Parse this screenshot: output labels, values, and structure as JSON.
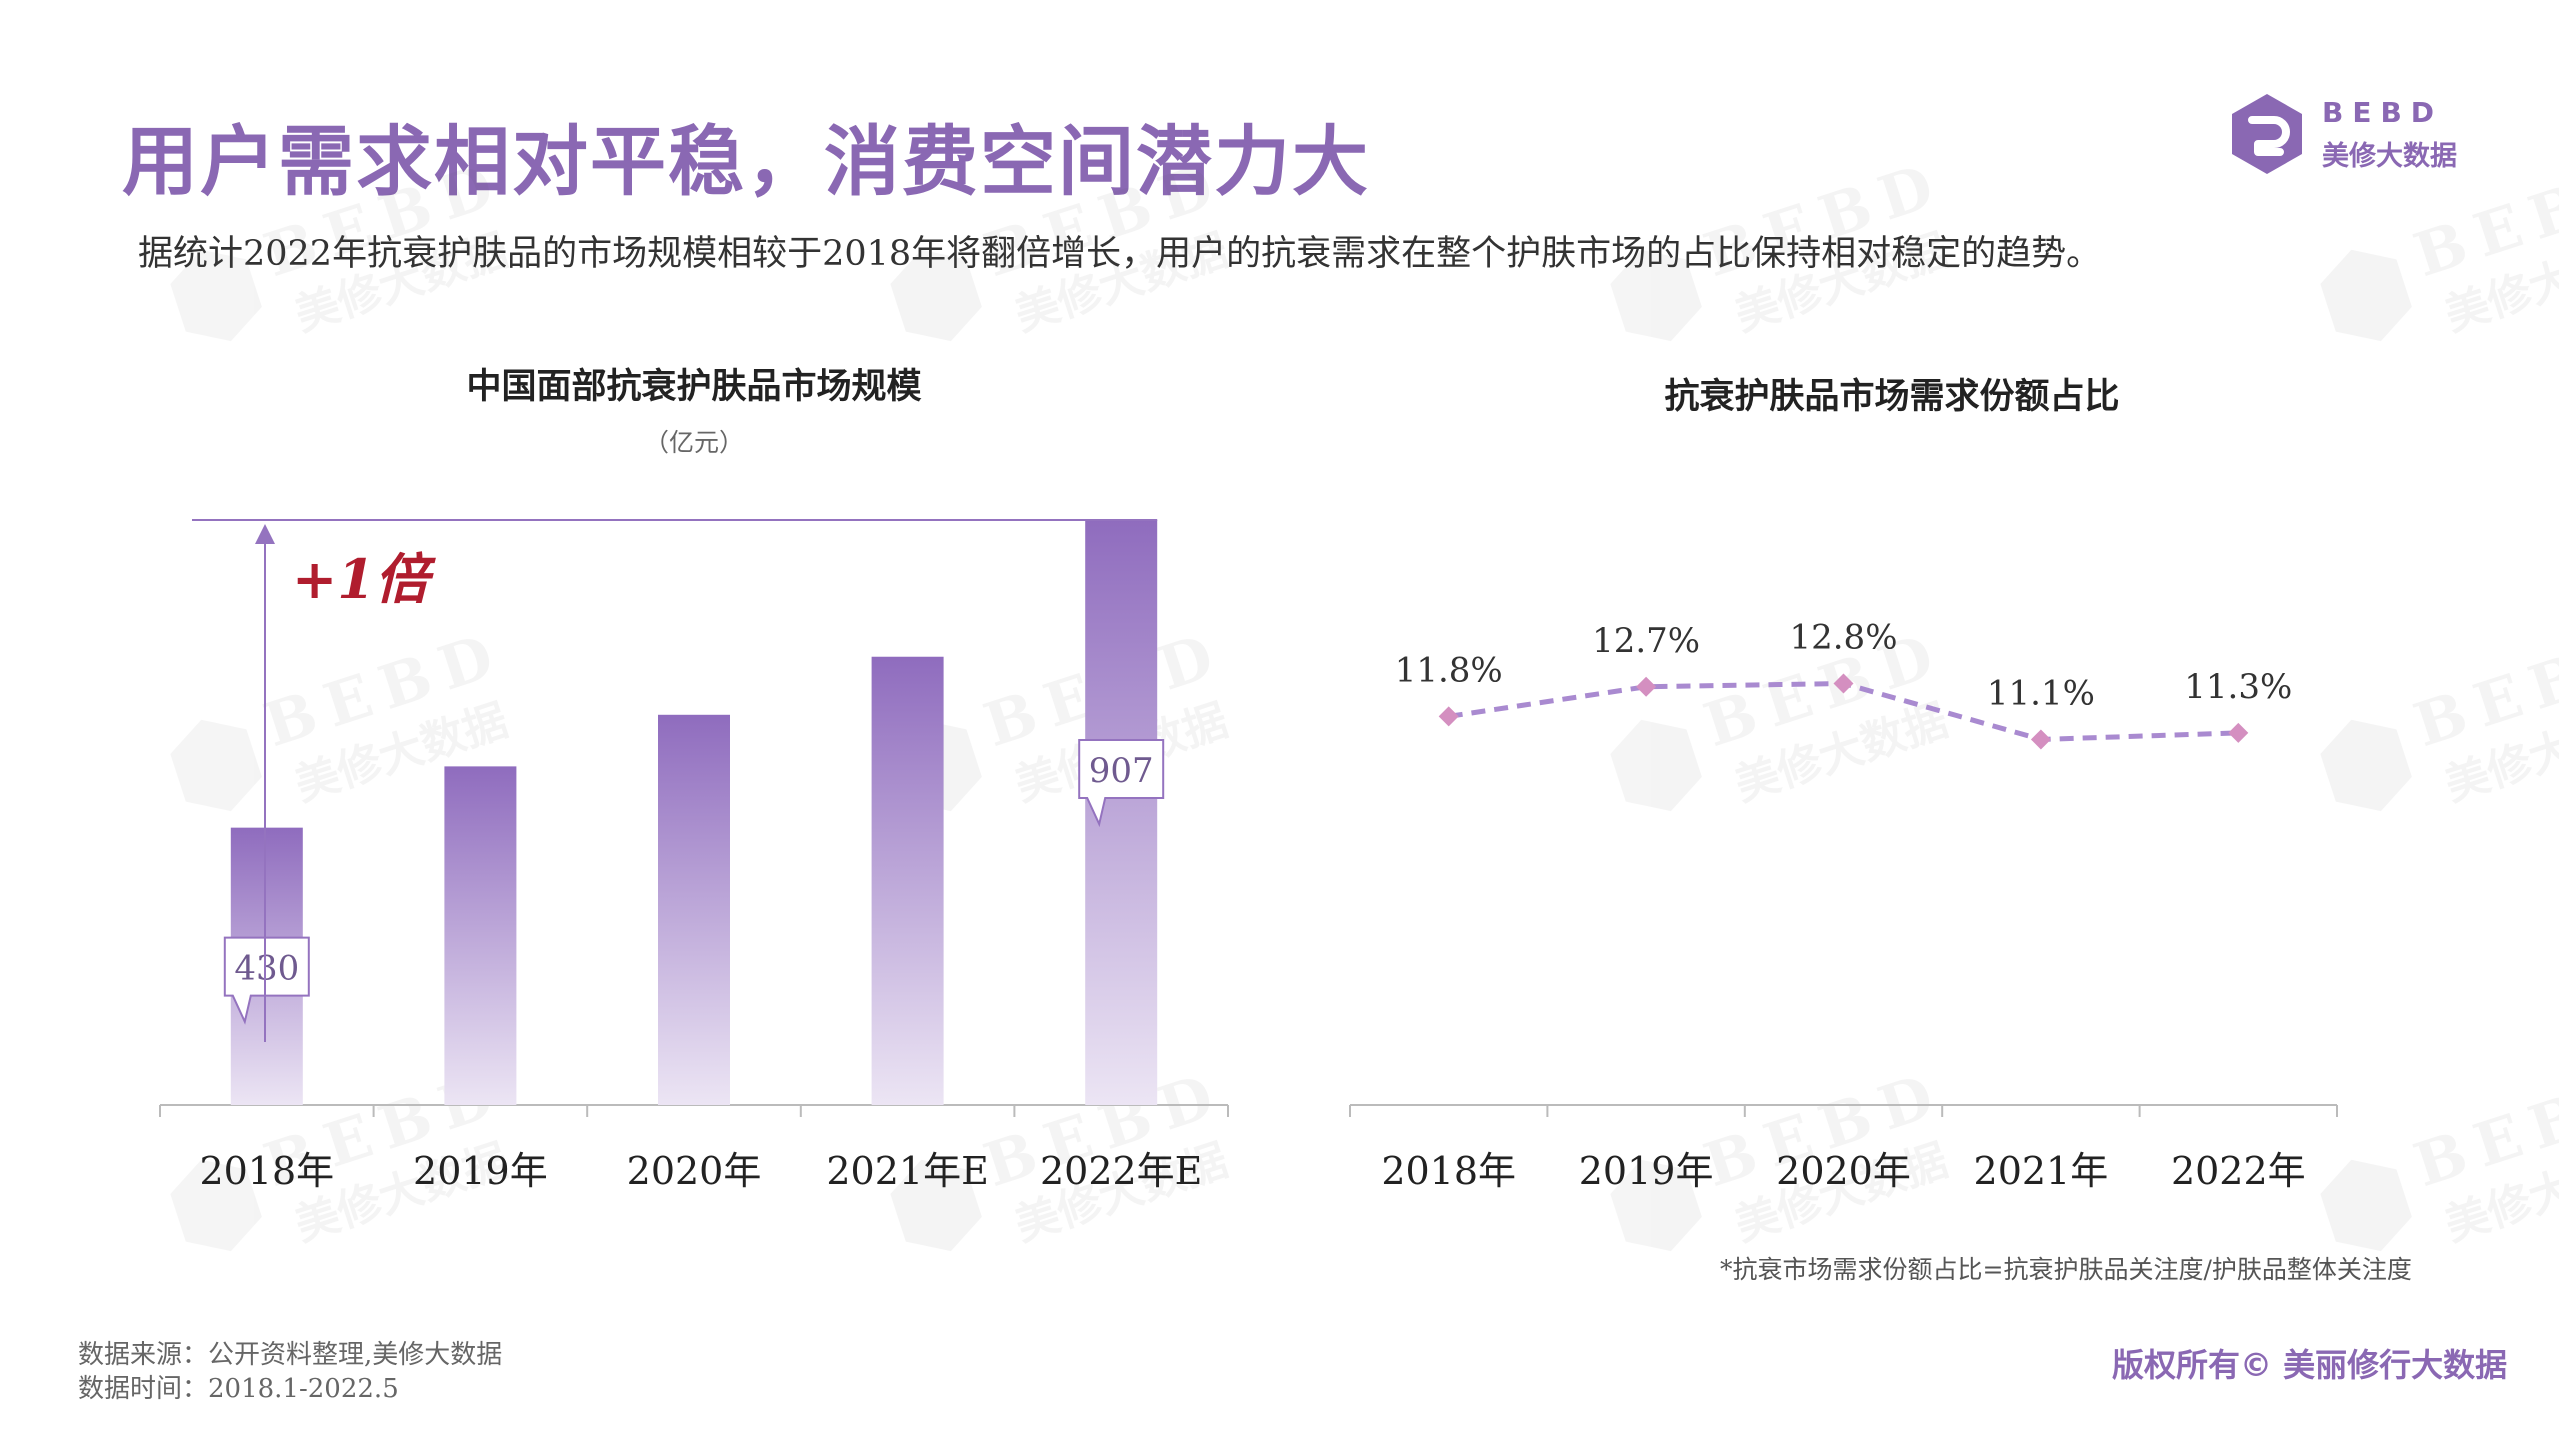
{
  "header": {
    "title": "用户需求相对平稳，消费空间潜力大",
    "subtitle": "据统计2022年抗衰护肤品的市场规模相较于2018年将翻倍增长，用户的抗衰需求在整个护肤市场的占比保持相对稳定的趋势。"
  },
  "logo": {
    "en": "BEBD",
    "cn": "美修大数据",
    "icon": "bebd-logo-icon",
    "watermark": "BEBD 美修大数据"
  },
  "colors": {
    "accent": "#8a68b3",
    "bar": "#9473bf",
    "line": "#a98ad0",
    "marker": "#d48fc0",
    "highlight": "#b01d2e"
  },
  "chart_data": [
    {
      "type": "bar",
      "title": "中国面部抗衰护肤品市场规模",
      "unit": "（亿元）",
      "categories": [
        "2018年",
        "2019年",
        "2020年",
        "2021年E",
        "2022年E"
      ],
      "values": [
        430,
        525,
        605,
        695,
        907
      ],
      "data_labels": [
        {
          "index": 0,
          "text": "430"
        },
        {
          "index": 4,
          "text": "907"
        }
      ],
      "annotation": "+1倍",
      "ylim": [
        0,
        907
      ]
    },
    {
      "type": "line",
      "title": "抗衰护肤品市场需求份额占比",
      "categories": [
        "2018年",
        "2019年",
        "2020年",
        "2021年",
        "2022年"
      ],
      "values": [
        11.8,
        12.7,
        12.8,
        11.1,
        11.3
      ],
      "labels": [
        "11.8%",
        "12.7%",
        "12.8%",
        "11.1%",
        "11.3%"
      ],
      "ylim": [
        0,
        20.8
      ],
      "line_style": "dashed"
    }
  ],
  "footnote": "*抗衰市场需求份额占比=抗衰护肤品关注度/护肤品整体关注度",
  "source": {
    "line1": "数据来源：公开资料整理,美修大数据",
    "line2": "数据时间：2018.1-2022.5"
  },
  "copyright": "版权所有© 美丽修行大数据"
}
